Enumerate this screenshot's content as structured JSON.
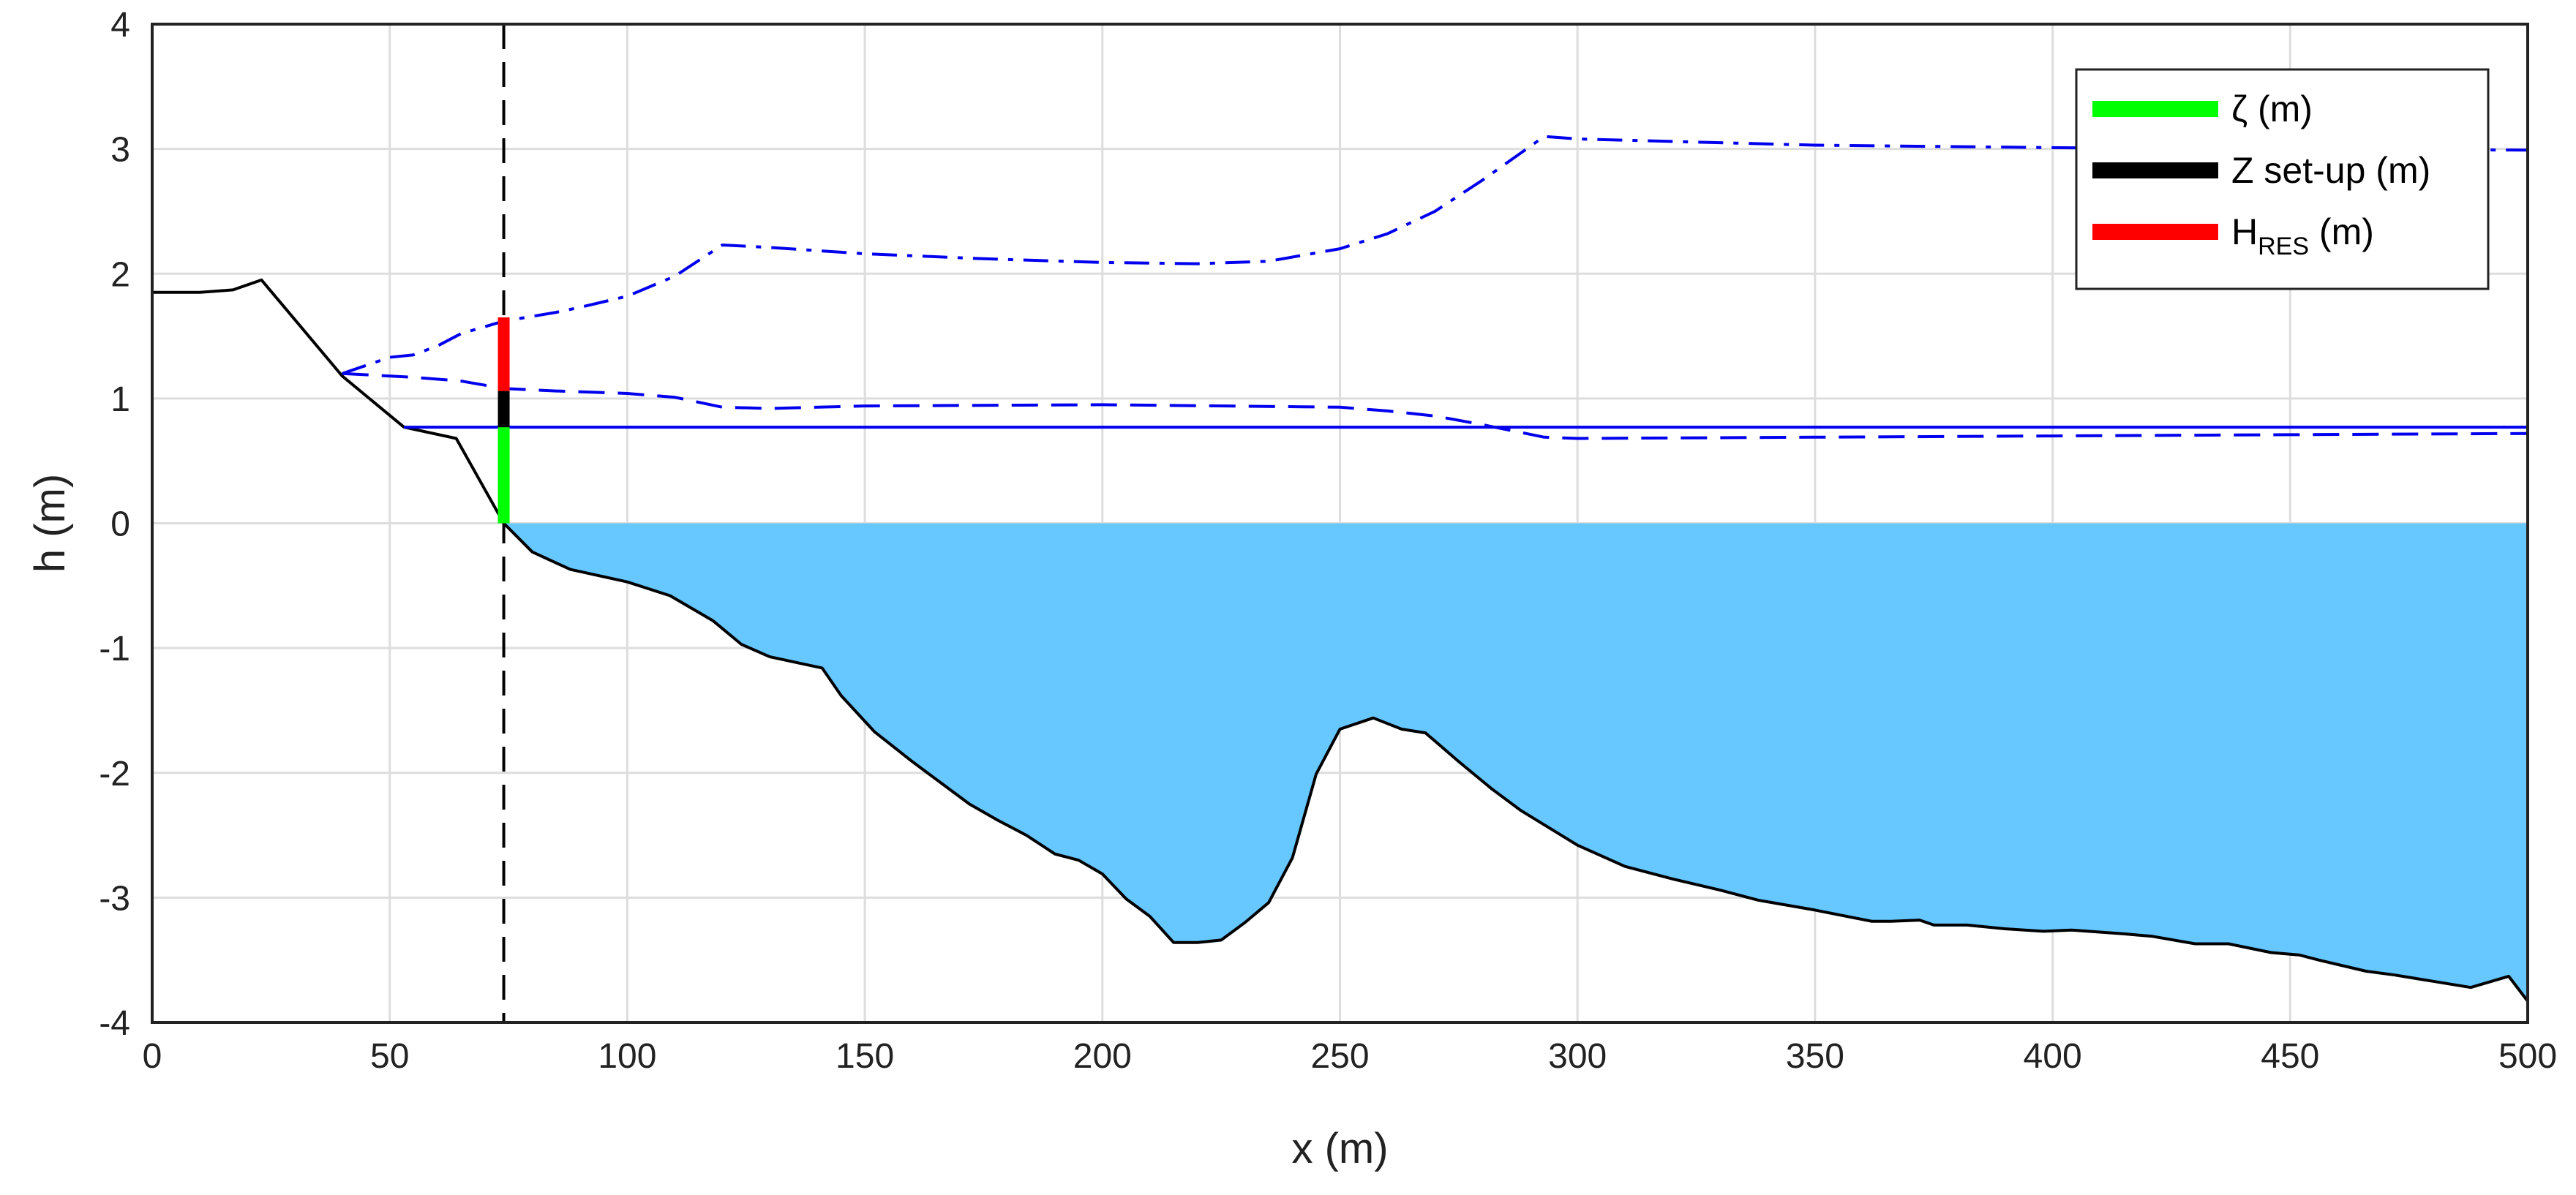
{
  "chart_data": {
    "type": "line",
    "xlabel": "x (m)",
    "ylabel": "h (m)",
    "xlim": [
      0,
      500
    ],
    "ylim": [
      -4,
      4
    ],
    "grid": true,
    "xticks": [
      0,
      50,
      100,
      150,
      200,
      250,
      300,
      350,
      400,
      450,
      500
    ],
    "yticks": [
      -4,
      -3,
      -2,
      -1,
      0,
      1,
      2,
      3,
      4
    ],
    "legend_position": "top-right",
    "legend": [
      {
        "label": "ζ",
        "subscript": "",
        "suffix": " (m)",
        "color": "#00ff00"
      },
      {
        "label": "Z set-up (m)",
        "subscript": "",
        "suffix": "",
        "color": "#000000"
      },
      {
        "label": "H",
        "subscript": "RES",
        "suffix": " (m)",
        "color": "#ff0000"
      }
    ],
    "colors": {
      "water_fill": "#66c8ff",
      "bathymetry": "#000000",
      "profiles": "#0000ee",
      "grid": "#dddddd",
      "zeta": "#00ff00",
      "setup": "#000000",
      "hres": "#ff0000"
    },
    "marker_line_x": 74,
    "bars": {
      "x": 74,
      "zeta": [
        0,
        0.77
      ],
      "setup": [
        0.77,
        1.06
      ],
      "hres": [
        1.06,
        1.65
      ]
    },
    "series": [
      {
        "name": "bathymetry",
        "style": "solid",
        "x": [
          0,
          10,
          17,
          23,
          40,
          53,
          64,
          74,
          80,
          88,
          100,
          109,
          118,
          124,
          130,
          141,
          145,
          152,
          160,
          166,
          172,
          178,
          184,
          190,
          195,
          200,
          205,
          210,
          215,
          220,
          225,
          230,
          235,
          240,
          245,
          250,
          257,
          263,
          268,
          275,
          282,
          288,
          300,
          310,
          320,
          330,
          338,
          350,
          362,
          366,
          372,
          375,
          382,
          390,
          398,
          404,
          415,
          421,
          430,
          434,
          437,
          446,
          452,
          456,
          466,
          472,
          480,
          488,
          496,
          500
        ],
        "y": [
          1.85,
          1.85,
          1.87,
          1.95,
          1.18,
          0.77,
          0.68,
          0,
          -0.23,
          -0.37,
          -0.47,
          -0.58,
          -0.78,
          -0.97,
          -1.07,
          -1.16,
          -1.38,
          -1.67,
          -1.91,
          -2.08,
          -2.25,
          -2.38,
          -2.5,
          -2.65,
          -2.7,
          -2.81,
          -3.01,
          -3.15,
          -3.36,
          -3.36,
          -3.34,
          -3.2,
          -3.04,
          -2.68,
          -2.01,
          -1.65,
          -1.56,
          -1.65,
          -1.68,
          -1.91,
          -2.13,
          -2.3,
          -2.58,
          -2.75,
          -2.85,
          -2.94,
          -3.02,
          -3.1,
          -3.19,
          -3.19,
          -3.18,
          -3.22,
          -3.22,
          -3.25,
          -3.27,
          -3.26,
          -3.29,
          -3.31,
          -3.37,
          -3.37,
          -3.37,
          -3.44,
          -3.46,
          -3.5,
          -3.59,
          -3.62,
          -3.67,
          -3.72,
          -3.63,
          -3.83
        ]
      },
      {
        "name": "mean water level",
        "style": "solid",
        "x": [
          53,
          500
        ],
        "y": [
          0.77,
          0.77
        ]
      },
      {
        "name": "dashed profile",
        "style": "dashed",
        "x": [
          40,
          55,
          65,
          74,
          85,
          100,
          110,
          120,
          130,
          150,
          200,
          250,
          260,
          270,
          280,
          293,
          300,
          350,
          400,
          450,
          500
        ],
        "y": [
          1.2,
          1.17,
          1.14,
          1.08,
          1.06,
          1.04,
          1.01,
          0.93,
          0.92,
          0.94,
          0.95,
          0.93,
          0.9,
          0.86,
          0.79,
          0.69,
          0.68,
          0.69,
          0.7,
          0.71,
          0.72
        ]
      },
      {
        "name": "dash-dot profile",
        "style": "dashdot",
        "x": [
          40,
          50,
          55,
          60,
          65,
          74,
          85,
          90,
          100,
          110,
          120,
          130,
          150,
          175,
          200,
          220,
          235,
          250,
          260,
          270,
          280,
          293,
          300,
          350,
          400,
          450,
          500
        ],
        "y": [
          1.2,
          1.33,
          1.35,
          1.42,
          1.52,
          1.62,
          1.69,
          1.73,
          1.82,
          1.98,
          2.23,
          2.21,
          2.16,
          2.12,
          2.09,
          2.08,
          2.1,
          2.2,
          2.32,
          2.5,
          2.75,
          3.1,
          3.08,
          3.03,
          3.01,
          3.0,
          2.99
        ]
      }
    ]
  }
}
